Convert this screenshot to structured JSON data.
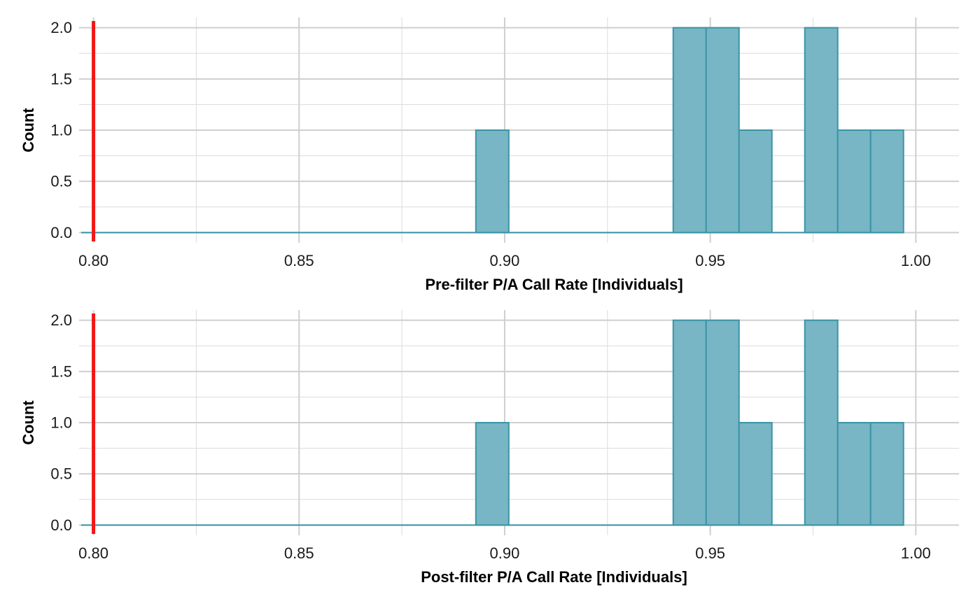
{
  "colors": {
    "bar_fill": "#78b6c5",
    "bar_stroke": "#3a94a6",
    "threshold_line": "#f01818",
    "grid_major": "#cfcfcf",
    "grid_minor": "#dcdcdc",
    "background": "#ffffff"
  },
  "chart_data": [
    {
      "type": "bar",
      "subtype": "histogram",
      "title": "",
      "xlabel": "Pre-filter P/A Call Rate [Individuals]",
      "ylabel": "Count",
      "xlim": [
        0.7965,
        1.0105
      ],
      "ylim": [
        -0.1,
        2.1
      ],
      "xticks": [
        0.8,
        0.85,
        0.9,
        0.95,
        1.0
      ],
      "xtick_labels": [
        "0.80",
        "0.85",
        "0.90",
        "0.95",
        "1.00"
      ],
      "yticks": [
        0,
        0.5,
        1,
        1.5,
        2
      ],
      "ytick_labels": [
        "0.0",
        "0.5",
        "1.0",
        "1.5",
        "2.0"
      ],
      "bins": [
        {
          "x0": 0.893,
          "x1": 0.901,
          "count": 1
        },
        {
          "x0": 0.941,
          "x1": 0.949,
          "count": 2
        },
        {
          "x0": 0.949,
          "x1": 0.957,
          "count": 2
        },
        {
          "x0": 0.957,
          "x1": 0.965,
          "count": 1
        },
        {
          "x0": 0.973,
          "x1": 0.981,
          "count": 2
        },
        {
          "x0": 0.981,
          "x1": 0.989,
          "count": 1
        },
        {
          "x0": 0.989,
          "x1": 0.997,
          "count": 1
        }
      ],
      "baseline_range": [
        0.797,
        0.997
      ],
      "threshold": 0.8,
      "grid": true
    },
    {
      "type": "bar",
      "subtype": "histogram",
      "title": "",
      "xlabel": "Post-filter P/A Call Rate [Individuals]",
      "ylabel": "Count",
      "xlim": [
        0.7965,
        1.0105
      ],
      "ylim": [
        -0.1,
        2.1
      ],
      "xticks": [
        0.8,
        0.85,
        0.9,
        0.95,
        1.0
      ],
      "xtick_labels": [
        "0.80",
        "0.85",
        "0.90",
        "0.95",
        "1.00"
      ],
      "yticks": [
        0,
        0.5,
        1,
        1.5,
        2
      ],
      "ytick_labels": [
        "0.0",
        "0.5",
        "1.0",
        "1.5",
        "2.0"
      ],
      "bins": [
        {
          "x0": 0.893,
          "x1": 0.901,
          "count": 1
        },
        {
          "x0": 0.941,
          "x1": 0.949,
          "count": 2
        },
        {
          "x0": 0.949,
          "x1": 0.957,
          "count": 2
        },
        {
          "x0": 0.957,
          "x1": 0.965,
          "count": 1
        },
        {
          "x0": 0.973,
          "x1": 0.981,
          "count": 2
        },
        {
          "x0": 0.981,
          "x1": 0.989,
          "count": 1
        },
        {
          "x0": 0.989,
          "x1": 0.997,
          "count": 1
        }
      ],
      "baseline_range": [
        0.797,
        0.997
      ],
      "threshold": 0.8,
      "grid": true
    }
  ]
}
